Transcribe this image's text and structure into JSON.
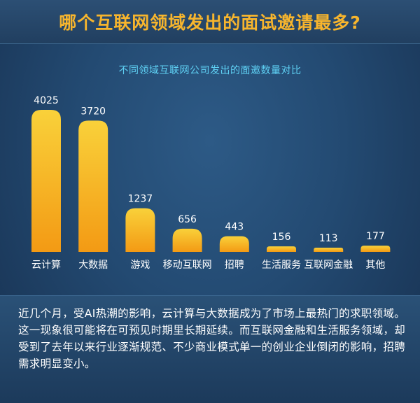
{
  "header": {
    "title": "哪个互联网领域发出的面试邀请最多?"
  },
  "chart_data": {
    "type": "bar",
    "title": "不同领域互联网公司发出的面邀数量对比",
    "categories": [
      "云计算",
      "大数据",
      "游戏",
      "移动互联网",
      "招聘",
      "生活服务",
      "互联网金融",
      "其他"
    ],
    "values": [
      4025,
      3720,
      1237,
      656,
      443,
      156,
      113,
      177
    ],
    "xlabel": "",
    "ylabel": "",
    "ylim": [
      0,
      4025
    ],
    "grid": false,
    "bar_color_top": "#f9d13a",
    "bar_color_bottom": "#f39a14"
  },
  "caption": {
    "text": "近几个月，受AI热潮的影响，云计算与大数据成为了市场上最热门的求职领域。这一现象很可能将在可预见时期里长期延续。而互联网金融和生活服务领域，却受到了去年以来行业逐渐规范、不少商业模式单一的创业企业倒闭的影响，招聘需求明显变小。"
  }
}
